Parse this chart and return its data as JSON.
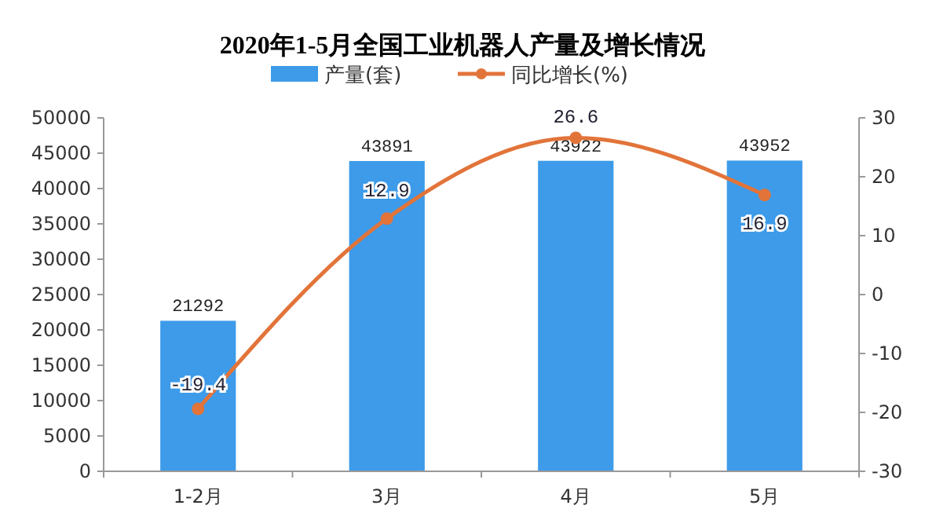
{
  "chart_data": {
    "type": "bar",
    "title": "2020年1-5月全国工业机器人产量及增长情况",
    "categories": [
      "1-2月",
      "3月",
      "4月",
      "5月"
    ],
    "series": [
      {
        "name": "产量(套)",
        "color": "#3d9be9",
        "values": [
          21292,
          43891,
          43922,
          43952
        ]
      },
      {
        "name": "同比增长(%)",
        "type": "line",
        "axis": "y2",
        "color": "#e2743a",
        "marker": "circle",
        "values": [
          -19.4,
          12.9,
          26.6,
          16.9
        ]
      }
    ],
    "ylim": [
      0,
      50000
    ],
    "yticks": [
      0,
      5000,
      10000,
      15000,
      20000,
      25000,
      30000,
      35000,
      40000,
      45000,
      50000
    ],
    "y2lim": [
      -30,
      30
    ],
    "y2ticks": [
      -30,
      -20,
      -10,
      0,
      10,
      20,
      30
    ],
    "data_labels": true,
    "legend": "top",
    "grid": false
  }
}
